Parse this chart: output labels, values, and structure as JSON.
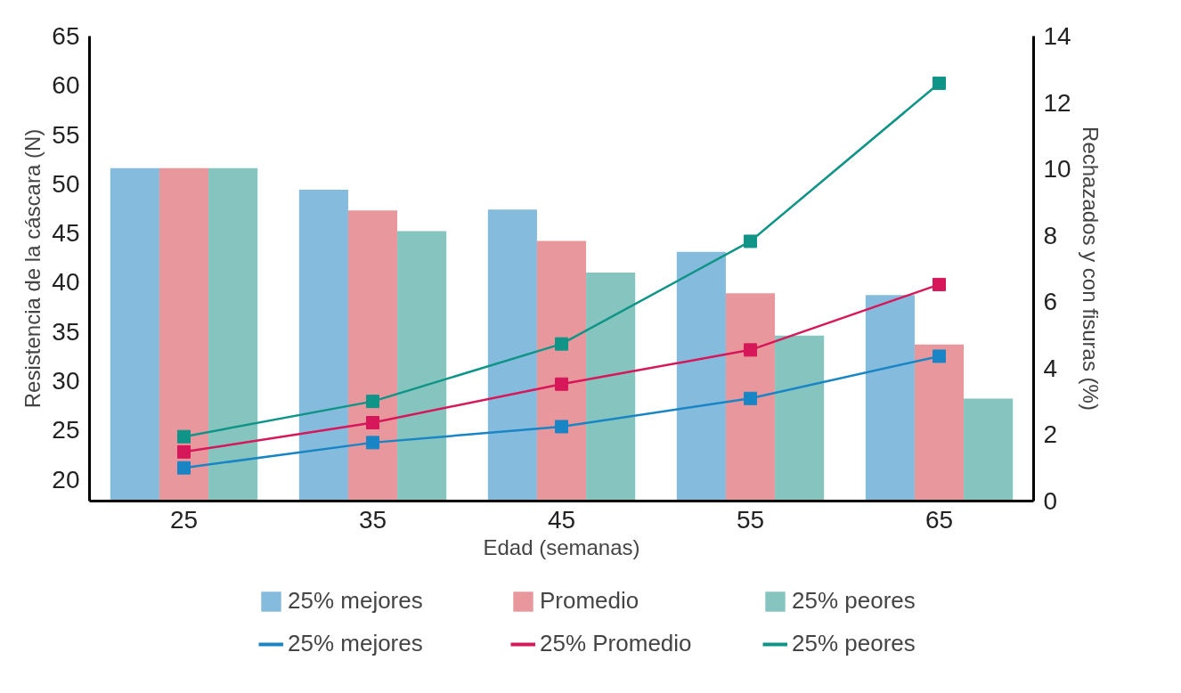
{
  "chart_data": {
    "type": "bar",
    "xlabel": "Edad (semanas)",
    "ylabel": "Resistencia de la cáscara (N)",
    "y2label": "Rechazados y con fisuras (%)",
    "categories": [
      "25",
      "35",
      "45",
      "55",
      "65"
    ],
    "ylim": [
      17.8,
      65
    ],
    "yticks": [
      20,
      25,
      30,
      35,
      40,
      45,
      50,
      55,
      60,
      65
    ],
    "y2lim": [
      0,
      14
    ],
    "y2ticks": [
      0,
      2,
      4,
      6,
      8,
      10,
      12,
      14
    ],
    "grid": false,
    "legend": "bottom",
    "marker": "square",
    "series": [
      {
        "name": "25% mejores",
        "type": "bar",
        "color": "#85bbdc",
        "values": [
          51.6,
          49.4,
          47.4,
          43.1,
          38.7
        ]
      },
      {
        "name": "Promedio",
        "type": "bar",
        "color": "#e8989c",
        "values": [
          51.6,
          47.3,
          44.2,
          38.9,
          33.7
        ]
      },
      {
        "name": "25% peores",
        "type": "bar",
        "color": "#86c5bf",
        "values": [
          51.6,
          45.2,
          41.0,
          34.6,
          28.2
        ]
      },
      {
        "name": "25% mejores",
        "type": "line",
        "axis": "y2",
        "color": "#1a85c5",
        "values": [
          1.0,
          1.76,
          2.24,
          3.09,
          4.36
        ]
      },
      {
        "name": "25% Promedio",
        "type": "line",
        "axis": "y2",
        "color": "#d6175a",
        "values": [
          1.48,
          2.36,
          3.52,
          4.55,
          6.52
        ]
      },
      {
        "name": "25% peores",
        "type": "line",
        "axis": "y2",
        "color": "#109488",
        "values": [
          1.94,
          3.0,
          4.73,
          7.82,
          12.58
        ]
      }
    ]
  }
}
